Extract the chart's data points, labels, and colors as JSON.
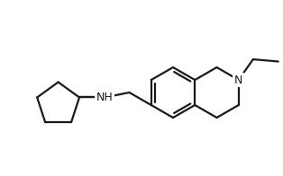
{
  "bg_color": "#ffffff",
  "line_color": "#1a1a1a",
  "line_width": 1.6,
  "font_size_N": 9,
  "font_size_NH": 9,
  "bl": 28
}
